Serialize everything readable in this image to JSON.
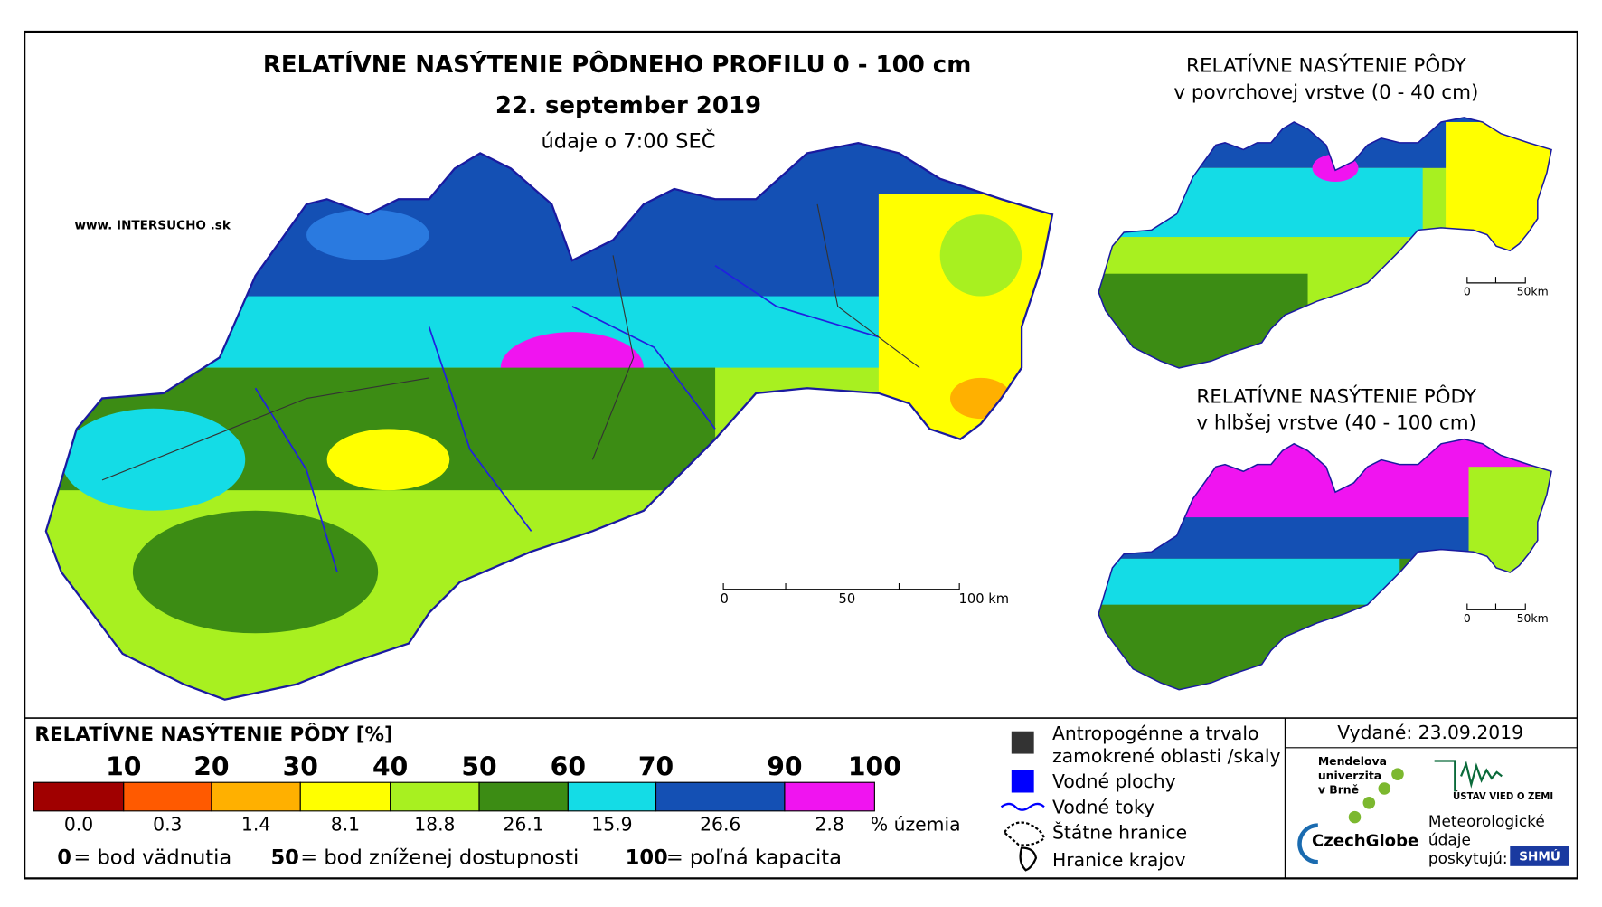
{
  "header": {
    "title": "RELATÍVNE NASÝTENIE PÔDNEHO PROFILU 0 - 100 cm",
    "date": "22. september 2019",
    "time": "údaje o 7:00 SEČ",
    "source": "www. INTERSUCHO .sk"
  },
  "main_map": {
    "scale": [
      "0",
      "50",
      "100 km"
    ]
  },
  "inset_top": {
    "title": [
      "RELATÍVNE NASÝTENIE PÔDY",
      "v povrchovej vrstve (0 - 40 cm)"
    ],
    "scale": [
      "0",
      "50km"
    ]
  },
  "inset_bottom": {
    "title": [
      "RELATÍVNE NASÝTENIE PÔDY",
      "v hlbšej vrstve (40 - 100 cm)"
    ],
    "scale": [
      "0",
      "50km"
    ]
  },
  "legend": {
    "title": "RELATÍVNE NASÝTENIE PÔDY [%]",
    "boundaries": [
      "10",
      "20",
      "30",
      "40",
      "50",
      "60",
      "70",
      "90",
      "100"
    ],
    "classes": [
      {
        "color": "#a00000",
        "share": "0.0"
      },
      {
        "color": "#ff5a00",
        "share": "0.3"
      },
      {
        "color": "#ffb000",
        "share": "1.4"
      },
      {
        "color": "#ffff00",
        "share": "8.1"
      },
      {
        "color": "#a8f020",
        "share": "18.8"
      },
      {
        "color": "#3c8c14",
        "share": "26.1"
      },
      {
        "color": "#14dce6",
        "share": "15.9"
      },
      {
        "color": "#1450b4",
        "share": "26.6"
      },
      {
        "color": "#f014f0",
        "share": "2.8"
      }
    ],
    "share_unit": "% územia",
    "notes": [
      {
        "key": "0",
        "text": "= bod vädnutia"
      },
      {
        "key": "50",
        "text": "= bod zníženej dostupnosti"
      },
      {
        "key": "100",
        "text": "= poľná kapacita"
      }
    ]
  },
  "symbols": [
    "Antropogénne a trvalo",
    "zamokrené oblasti /skaly",
    "Vodné plochy",
    "Vodné toky",
    "Štátne hranice",
    "Hranice krajov"
  ],
  "credits": {
    "issued": "Vydané: 23.09.2019",
    "mendel": [
      "Mendelova",
      "univerzita",
      "v Brně"
    ],
    "czechglobe": "CzechGlobe",
    "uvz": "ÚSTAV VIED O ZEMI",
    "meteo": [
      "Meteorologické",
      "údaje",
      "poskytujú:"
    ],
    "shmu": "SHMÚ"
  }
}
